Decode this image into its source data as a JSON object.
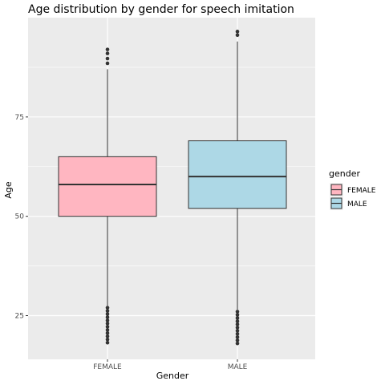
{
  "chart_data": {
    "type": "boxplot",
    "title": "Age distribution by gender for speech imitation",
    "xlabel": "Gender",
    "ylabel": "Age",
    "ylim": [
      14,
      100
    ],
    "yticks": [
      25,
      50,
      75
    ],
    "categories": [
      "FEMALE",
      "MALE"
    ],
    "legend": {
      "title": "gender",
      "position": "right",
      "entries": [
        "FEMALE",
        "MALE"
      ]
    },
    "boxes": [
      {
        "category": "FEMALE",
        "q1": 50,
        "median": 58,
        "q3": 65,
        "whisker_low": 27.5,
        "whisker_high": 87,
        "outliers": [
          27,
          26.2,
          25.4,
          24.6,
          23.8,
          23,
          22.2,
          21.4,
          20.6,
          19.8,
          19,
          18.2,
          88.5,
          89.7,
          91,
          92
        ],
        "fill": "#ffb6c1"
      },
      {
        "category": "MALE",
        "q1": 52,
        "median": 60,
        "q3": 69,
        "whisker_low": 26.5,
        "whisker_high": 94,
        "outliers": [
          26,
          25.2,
          24.4,
          23.6,
          22.8,
          22,
          21.2,
          20.4,
          19.6,
          18.8,
          18,
          95.6,
          96.5
        ],
        "fill": "#add8e6"
      }
    ],
    "grid": true
  },
  "colors": {
    "panel": "#ebebeb",
    "gridline": "#ffffff",
    "box_border": "#333333"
  }
}
